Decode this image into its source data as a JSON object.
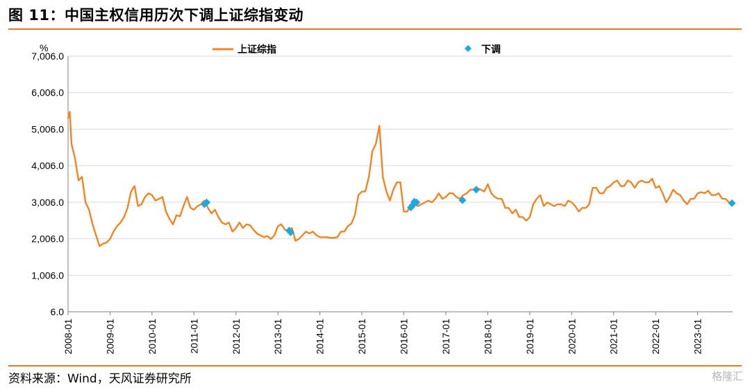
{
  "title": "图 11：中国主权信用历次下调上证综指变动",
  "source": "资料来源：Wind，天风证券研究所",
  "watermark": "格隆汇",
  "colors": {
    "accent": "#e87722",
    "line": "#f28421",
    "marker": "#1fa7e0",
    "grid": "#d9d9d9"
  },
  "chart_data": {
    "type": "line",
    "y_unit": "%",
    "x_tick_labels": [
      "2008-01",
      "2009-01",
      "2010-01",
      "2011-01",
      "2012-01",
      "2013-01",
      "2014-01",
      "2015-01",
      "2016-01",
      "2017-01",
      "2018-01",
      "2019-01",
      "2020-01",
      "2021-01",
      "2022-01",
      "2023-01"
    ],
    "y_tick_labels": [
      "7,006.0",
      "6,006.0",
      "5,006.0",
      "4,006.0",
      "3,006.0",
      "2,006.0",
      "1,006.0",
      "6.0"
    ],
    "ylim": [
      6,
      7006
    ],
    "xlim": [
      "2008-01",
      "2023-11"
    ],
    "grid": true,
    "legend_position": "top",
    "series": [
      {
        "name": "上证综指",
        "kind": "line",
        "points": [
          [
            "2008-01",
            5300
          ],
          [
            "2008-01-16",
            5480
          ],
          [
            "2008-02",
            4600
          ],
          [
            "2008-03",
            4200
          ],
          [
            "2008-04",
            3600
          ],
          [
            "2008-05",
            3700
          ],
          [
            "2008-06",
            3000
          ],
          [
            "2008-07",
            2800
          ],
          [
            "2008-08",
            2400
          ],
          [
            "2008-09",
            2100
          ],
          [
            "2008-10",
            1800
          ],
          [
            "2008-11",
            1870
          ],
          [
            "2008-12",
            1900
          ],
          [
            "2009-01",
            2000
          ],
          [
            "2009-02",
            2200
          ],
          [
            "2009-03",
            2350
          ],
          [
            "2009-04",
            2450
          ],
          [
            "2009-05",
            2600
          ],
          [
            "2009-06",
            2850
          ],
          [
            "2009-07",
            3300
          ],
          [
            "2009-08",
            3450
          ],
          [
            "2009-09",
            2900
          ],
          [
            "2009-10",
            2950
          ],
          [
            "2009-11",
            3150
          ],
          [
            "2009-12",
            3250
          ],
          [
            "2010-01",
            3200
          ],
          [
            "2010-02",
            3050
          ],
          [
            "2010-03",
            3100
          ],
          [
            "2010-04",
            3150
          ],
          [
            "2010-05",
            2750
          ],
          [
            "2010-06",
            2550
          ],
          [
            "2010-07",
            2400
          ],
          [
            "2010-08",
            2650
          ],
          [
            "2010-09",
            2620
          ],
          [
            "2010-10",
            2900
          ],
          [
            "2010-11",
            3150
          ],
          [
            "2010-12",
            2850
          ],
          [
            "2011-01",
            2800
          ],
          [
            "2011-02",
            2900
          ],
          [
            "2011-03",
            2950
          ],
          [
            "2011-04",
            3050
          ],
          [
            "2011-05",
            2850
          ],
          [
            "2011-06",
            2700
          ],
          [
            "2011-07",
            2800
          ],
          [
            "2011-08",
            2600
          ],
          [
            "2011-09",
            2450
          ],
          [
            "2011-10",
            2400
          ],
          [
            "2011-11",
            2450
          ],
          [
            "2011-12",
            2200
          ],
          [
            "2012-01",
            2300
          ],
          [
            "2012-02",
            2450
          ],
          [
            "2012-03",
            2300
          ],
          [
            "2012-04",
            2400
          ],
          [
            "2012-05",
            2380
          ],
          [
            "2012-06",
            2250
          ],
          [
            "2012-07",
            2150
          ],
          [
            "2012-08",
            2100
          ],
          [
            "2012-09",
            2050
          ],
          [
            "2012-10",
            2080
          ],
          [
            "2012-11",
            2000
          ],
          [
            "2012-12",
            2100
          ],
          [
            "2013-01",
            2350
          ],
          [
            "2013-02",
            2400
          ],
          [
            "2013-03",
            2250
          ],
          [
            "2013-04",
            2200
          ],
          [
            "2013-05",
            2300
          ],
          [
            "2013-06",
            1950
          ],
          [
            "2013-07",
            2000
          ],
          [
            "2013-08",
            2100
          ],
          [
            "2013-09",
            2200
          ],
          [
            "2013-10",
            2150
          ],
          [
            "2013-11",
            2200
          ],
          [
            "2013-12",
            2100
          ],
          [
            "2014-01",
            2050
          ],
          [
            "2014-02",
            2050
          ],
          [
            "2014-03",
            2050
          ],
          [
            "2014-04",
            2030
          ],
          [
            "2014-05",
            2030
          ],
          [
            "2014-06",
            2050
          ],
          [
            "2014-07",
            2200
          ],
          [
            "2014-08",
            2200
          ],
          [
            "2014-09",
            2350
          ],
          [
            "2014-10",
            2420
          ],
          [
            "2014-11",
            2650
          ],
          [
            "2014-12",
            3200
          ],
          [
            "2015-01",
            3300
          ],
          [
            "2015-02",
            3300
          ],
          [
            "2015-03",
            3700
          ],
          [
            "2015-04",
            4400
          ],
          [
            "2015-05",
            4600
          ],
          [
            "2015-06",
            5100
          ],
          [
            "2015-07",
            3700
          ],
          [
            "2015-08",
            3300
          ],
          [
            "2015-09",
            3050
          ],
          [
            "2015-10",
            3350
          ],
          [
            "2015-11",
            3550
          ],
          [
            "2015-12",
            3550
          ],
          [
            "2016-01",
            2750
          ],
          [
            "2016-02",
            2750
          ],
          [
            "2016-03",
            2950
          ],
          [
            "2016-04",
            2950
          ],
          [
            "2016-05",
            2900
          ],
          [
            "2016-06",
            2950
          ],
          [
            "2016-07",
            3000
          ],
          [
            "2016-08",
            3050
          ],
          [
            "2016-09",
            3000
          ],
          [
            "2016-10",
            3100
          ],
          [
            "2016-11",
            3250
          ],
          [
            "2016-12",
            3100
          ],
          [
            "2017-01",
            3150
          ],
          [
            "2017-02",
            3250
          ],
          [
            "2017-03",
            3250
          ],
          [
            "2017-04",
            3150
          ],
          [
            "2017-05",
            3100
          ],
          [
            "2017-06",
            3200
          ],
          [
            "2017-07",
            3250
          ],
          [
            "2017-08",
            3350
          ],
          [
            "2017-09",
            3350
          ],
          [
            "2017-10",
            3390
          ],
          [
            "2017-11",
            3350
          ],
          [
            "2017-12",
            3300
          ],
          [
            "2018-01",
            3500
          ],
          [
            "2018-02",
            3250
          ],
          [
            "2018-03",
            3150
          ],
          [
            "2018-04",
            3100
          ],
          [
            "2018-05",
            3100
          ],
          [
            "2018-06",
            2850
          ],
          [
            "2018-07",
            2850
          ],
          [
            "2018-08",
            2700
          ],
          [
            "2018-09",
            2800
          ],
          [
            "2018-10",
            2600
          ],
          [
            "2018-11",
            2600
          ],
          [
            "2018-12",
            2500
          ],
          [
            "2019-01",
            2600
          ],
          [
            "2019-02",
            2950
          ],
          [
            "2019-03",
            3100
          ],
          [
            "2019-04",
            3200
          ],
          [
            "2019-05",
            2900
          ],
          [
            "2019-06",
            3000
          ],
          [
            "2019-07",
            2950
          ],
          [
            "2019-08",
            2900
          ],
          [
            "2019-09",
            2950
          ],
          [
            "2019-10",
            2950
          ],
          [
            "2019-11",
            2900
          ],
          [
            "2019-12",
            3050
          ],
          [
            "2020-01",
            3000
          ],
          [
            "2020-02",
            2900
          ],
          [
            "2020-03",
            2750
          ],
          [
            "2020-04",
            2850
          ],
          [
            "2020-05",
            2850
          ],
          [
            "2020-06",
            2950
          ],
          [
            "2020-07",
            3400
          ],
          [
            "2020-08",
            3400
          ],
          [
            "2020-09",
            3250
          ],
          [
            "2020-10",
            3250
          ],
          [
            "2020-11",
            3400
          ],
          [
            "2020-12",
            3450
          ],
          [
            "2021-01",
            3550
          ],
          [
            "2021-02",
            3600
          ],
          [
            "2021-03",
            3450
          ],
          [
            "2021-04",
            3450
          ],
          [
            "2021-05",
            3600
          ],
          [
            "2021-06",
            3550
          ],
          [
            "2021-07",
            3400
          ],
          [
            "2021-08",
            3550
          ],
          [
            "2021-09",
            3600
          ],
          [
            "2021-10",
            3550
          ],
          [
            "2021-11",
            3550
          ],
          [
            "2021-12",
            3650
          ],
          [
            "2022-01",
            3400
          ],
          [
            "2022-02",
            3450
          ],
          [
            "2022-03",
            3250
          ],
          [
            "2022-04",
            3000
          ],
          [
            "2022-05",
            3150
          ],
          [
            "2022-06",
            3350
          ],
          [
            "2022-07",
            3250
          ],
          [
            "2022-08",
            3200
          ],
          [
            "2022-09",
            3050
          ],
          [
            "2022-10",
            2950
          ],
          [
            "2022-11",
            3100
          ],
          [
            "2022-12",
            3100
          ],
          [
            "2023-01",
            3250
          ],
          [
            "2023-02",
            3280
          ],
          [
            "2023-03",
            3250
          ],
          [
            "2023-04",
            3320
          ],
          [
            "2023-05",
            3200
          ],
          [
            "2023-06",
            3200
          ],
          [
            "2023-07",
            3250
          ],
          [
            "2023-08",
            3100
          ],
          [
            "2023-09",
            3100
          ],
          [
            "2023-10",
            3000
          ],
          [
            "2023-11",
            3000
          ]
        ]
      },
      {
        "name": "下调",
        "kind": "scatter",
        "points": [
          [
            "2011-04",
            2950
          ],
          [
            "2011-04-20",
            3000
          ],
          [
            "2013-04-08",
            2230
          ],
          [
            "2013-04-20",
            2180
          ],
          [
            "2016-03-01",
            2860
          ],
          [
            "2016-03-15",
            2920
          ],
          [
            "2016-04-01",
            3020
          ],
          [
            "2016-04-20",
            3000
          ],
          [
            "2017-05-24",
            3060
          ],
          [
            "2017-09-22",
            3350
          ],
          [
            "2023-12-05",
            2980
          ]
        ]
      }
    ]
  }
}
